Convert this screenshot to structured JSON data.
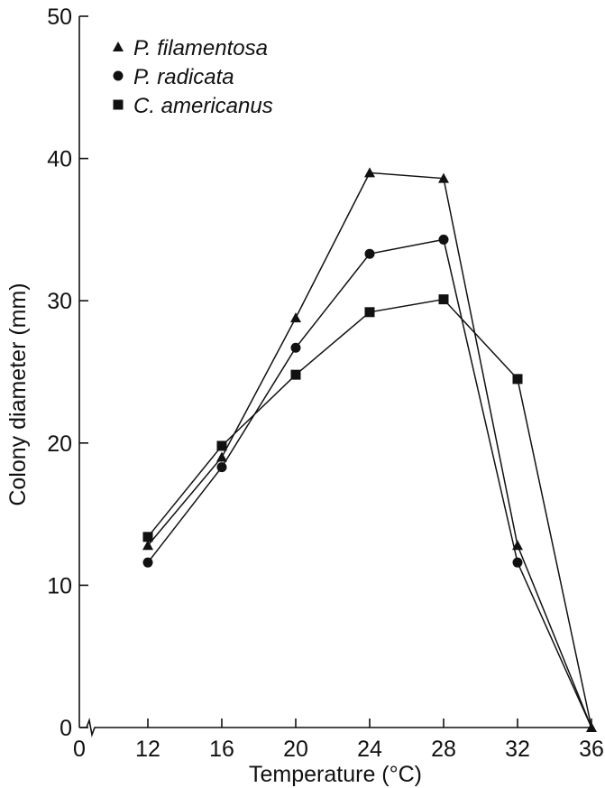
{
  "chart_data": {
    "type": "line",
    "title": "",
    "xlabel": "Temperature (°C)",
    "ylabel": "Colony diameter (mm)",
    "x_ticks": [
      "0",
      "12",
      "16",
      "20",
      "24",
      "28",
      "32",
      "36"
    ],
    "y_ticks": [
      "0",
      "10",
      "20",
      "30",
      "40",
      "50"
    ],
    "ylim": [
      0,
      50
    ],
    "x_axis_break": true,
    "grid": false,
    "legend_position": "top-left",
    "x": [
      12,
      16,
      20,
      24,
      28,
      32,
      36
    ],
    "series": [
      {
        "name": "P. filamentosa",
        "marker": "triangle",
        "values": [
          12.8,
          19.0,
          28.8,
          39.0,
          38.6,
          12.8,
          0
        ]
      },
      {
        "name": "P. radicata",
        "marker": "circle",
        "values": [
          11.6,
          18.3,
          26.7,
          33.3,
          34.3,
          11.6,
          0
        ]
      },
      {
        "name": "C. americanus",
        "marker": "square",
        "values": [
          13.4,
          19.8,
          24.8,
          29.2,
          30.1,
          24.5,
          0
        ]
      }
    ],
    "line_color": "#111111"
  }
}
